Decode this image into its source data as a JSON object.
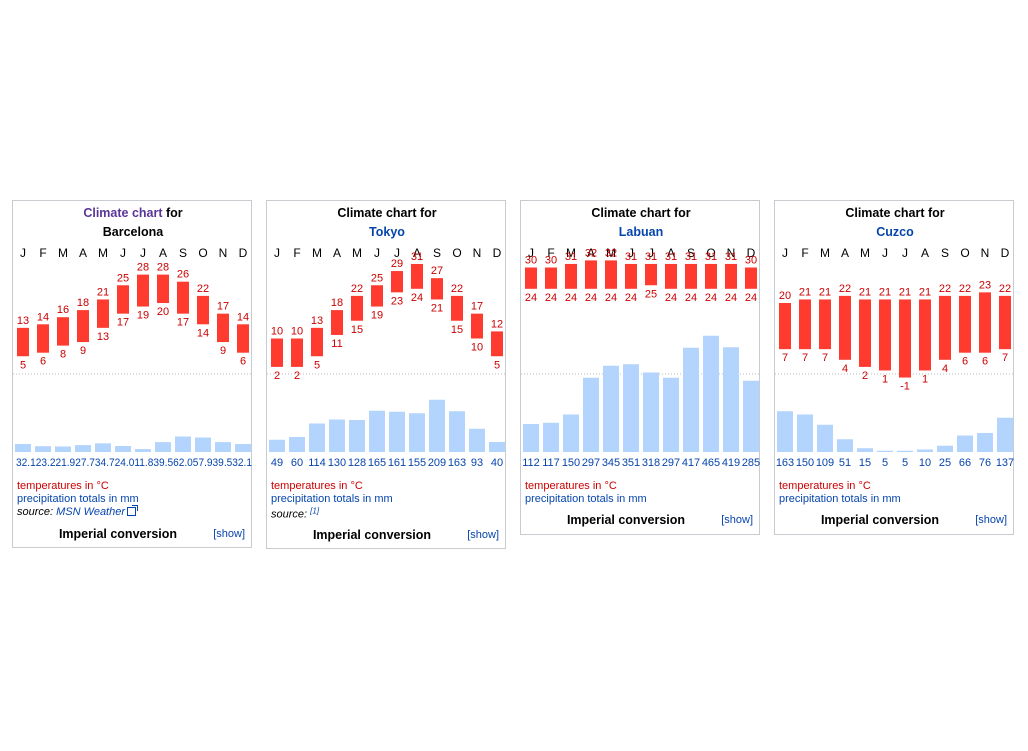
{
  "colors": {
    "temp_bar": "#ff3b30",
    "temp_text": "#cc0000",
    "precip_bar": "#b3d4fc",
    "precip_text": "#0645ad",
    "zero_line": "#bbbbbb"
  },
  "common": {
    "months": [
      "J",
      "F",
      "M",
      "A",
      "M",
      "J",
      "J",
      "A",
      "S",
      "O",
      "N",
      "D"
    ],
    "temp_note": "temperatures in °C",
    "precip_note": "precipitation totals in mm",
    "imperial_label": "Imperial conversion",
    "show_label": "[show]"
  },
  "chart_data": [
    {
      "type": "bar",
      "title_link": "Climate chart",
      "title_rest": " for",
      "location": "Barcelona",
      "categories": [
        "J",
        "F",
        "M",
        "A",
        "M",
        "J",
        "J",
        "A",
        "S",
        "O",
        "N",
        "D"
      ],
      "series": [
        {
          "values": [
            13,
            14,
            16,
            18,
            21,
            25,
            28,
            28,
            26,
            22,
            17,
            14
          ]
        },
        {
          "values": [
            5,
            6,
            8,
            9,
            13,
            17,
            19,
            20,
            17,
            14,
            9,
            6
          ]
        },
        {
          "values": [
            32.1,
            23.2,
            21.9,
            27.7,
            34.7,
            24.0,
            11.8,
            39.5,
            62.0,
            57.9,
            39.5,
            32.1
          ]
        }
      ],
      "precip_labels": "32.123.221.927.734.724.011.839.562.057.939.532.1",
      "source_prefix": "source: ",
      "source_link": "MSN Weather",
      "source_ref": ""
    },
    {
      "type": "bar",
      "title_link": "",
      "title_rest": "Climate chart for",
      "location": "Tokyo",
      "categories": [
        "J",
        "F",
        "M",
        "A",
        "M",
        "J",
        "J",
        "A",
        "S",
        "O",
        "N",
        "D"
      ],
      "series": [
        {
          "values": [
            10,
            10,
            13,
            18,
            22,
            25,
            29,
            31,
            27,
            22,
            17,
            12
          ]
        },
        {
          "values": [
            2,
            2,
            5,
            11,
            15,
            19,
            23,
            24,
            21,
            15,
            10,
            5
          ]
        },
        {
          "values": [
            49,
            60,
            114,
            130,
            128,
            165,
            161,
            155,
            209,
            163,
            93,
            40
          ]
        }
      ],
      "precip_labels": "",
      "source_prefix": "source: ",
      "source_link": "",
      "source_ref": "[1]"
    },
    {
      "type": "bar",
      "title_link": "",
      "title_rest": "Climate chart for",
      "location": "Labuan",
      "categories": [
        "J",
        "F",
        "M",
        "A",
        "M",
        "J",
        "J",
        "A",
        "S",
        "O",
        "N",
        "D"
      ],
      "series": [
        {
          "values": [
            30,
            30,
            31,
            32,
            32,
            31,
            31,
            31,
            31,
            31,
            31,
            30
          ]
        },
        {
          "values": [
            24,
            24,
            24,
            24,
            24,
            24,
            25,
            24,
            24,
            24,
            24,
            24
          ]
        },
        {
          "values": [
            112,
            117,
            150,
            297,
            345,
            351,
            318,
            297,
            417,
            465,
            419,
            285
          ]
        }
      ],
      "precip_labels": "",
      "source_prefix": "",
      "source_link": "",
      "source_ref": ""
    },
    {
      "type": "bar",
      "title_link": "",
      "title_rest": "Climate chart for",
      "location": "Cuzco",
      "categories": [
        "J",
        "F",
        "M",
        "A",
        "M",
        "J",
        "J",
        "A",
        "S",
        "O",
        "N",
        "D"
      ],
      "series": [
        {
          "values": [
            20,
            21,
            21,
            22,
            21,
            21,
            21,
            21,
            22,
            22,
            23,
            22
          ]
        },
        {
          "values": [
            7,
            7,
            7,
            4,
            2,
            1,
            -1,
            1,
            4,
            6,
            6,
            7
          ]
        },
        {
          "values": [
            163,
            150,
            109,
            51,
            15,
            5,
            5,
            10,
            25,
            66,
            76,
            137
          ]
        }
      ],
      "precip_labels": "",
      "source_prefix": "",
      "source_link": "",
      "source_ref": ""
    }
  ]
}
